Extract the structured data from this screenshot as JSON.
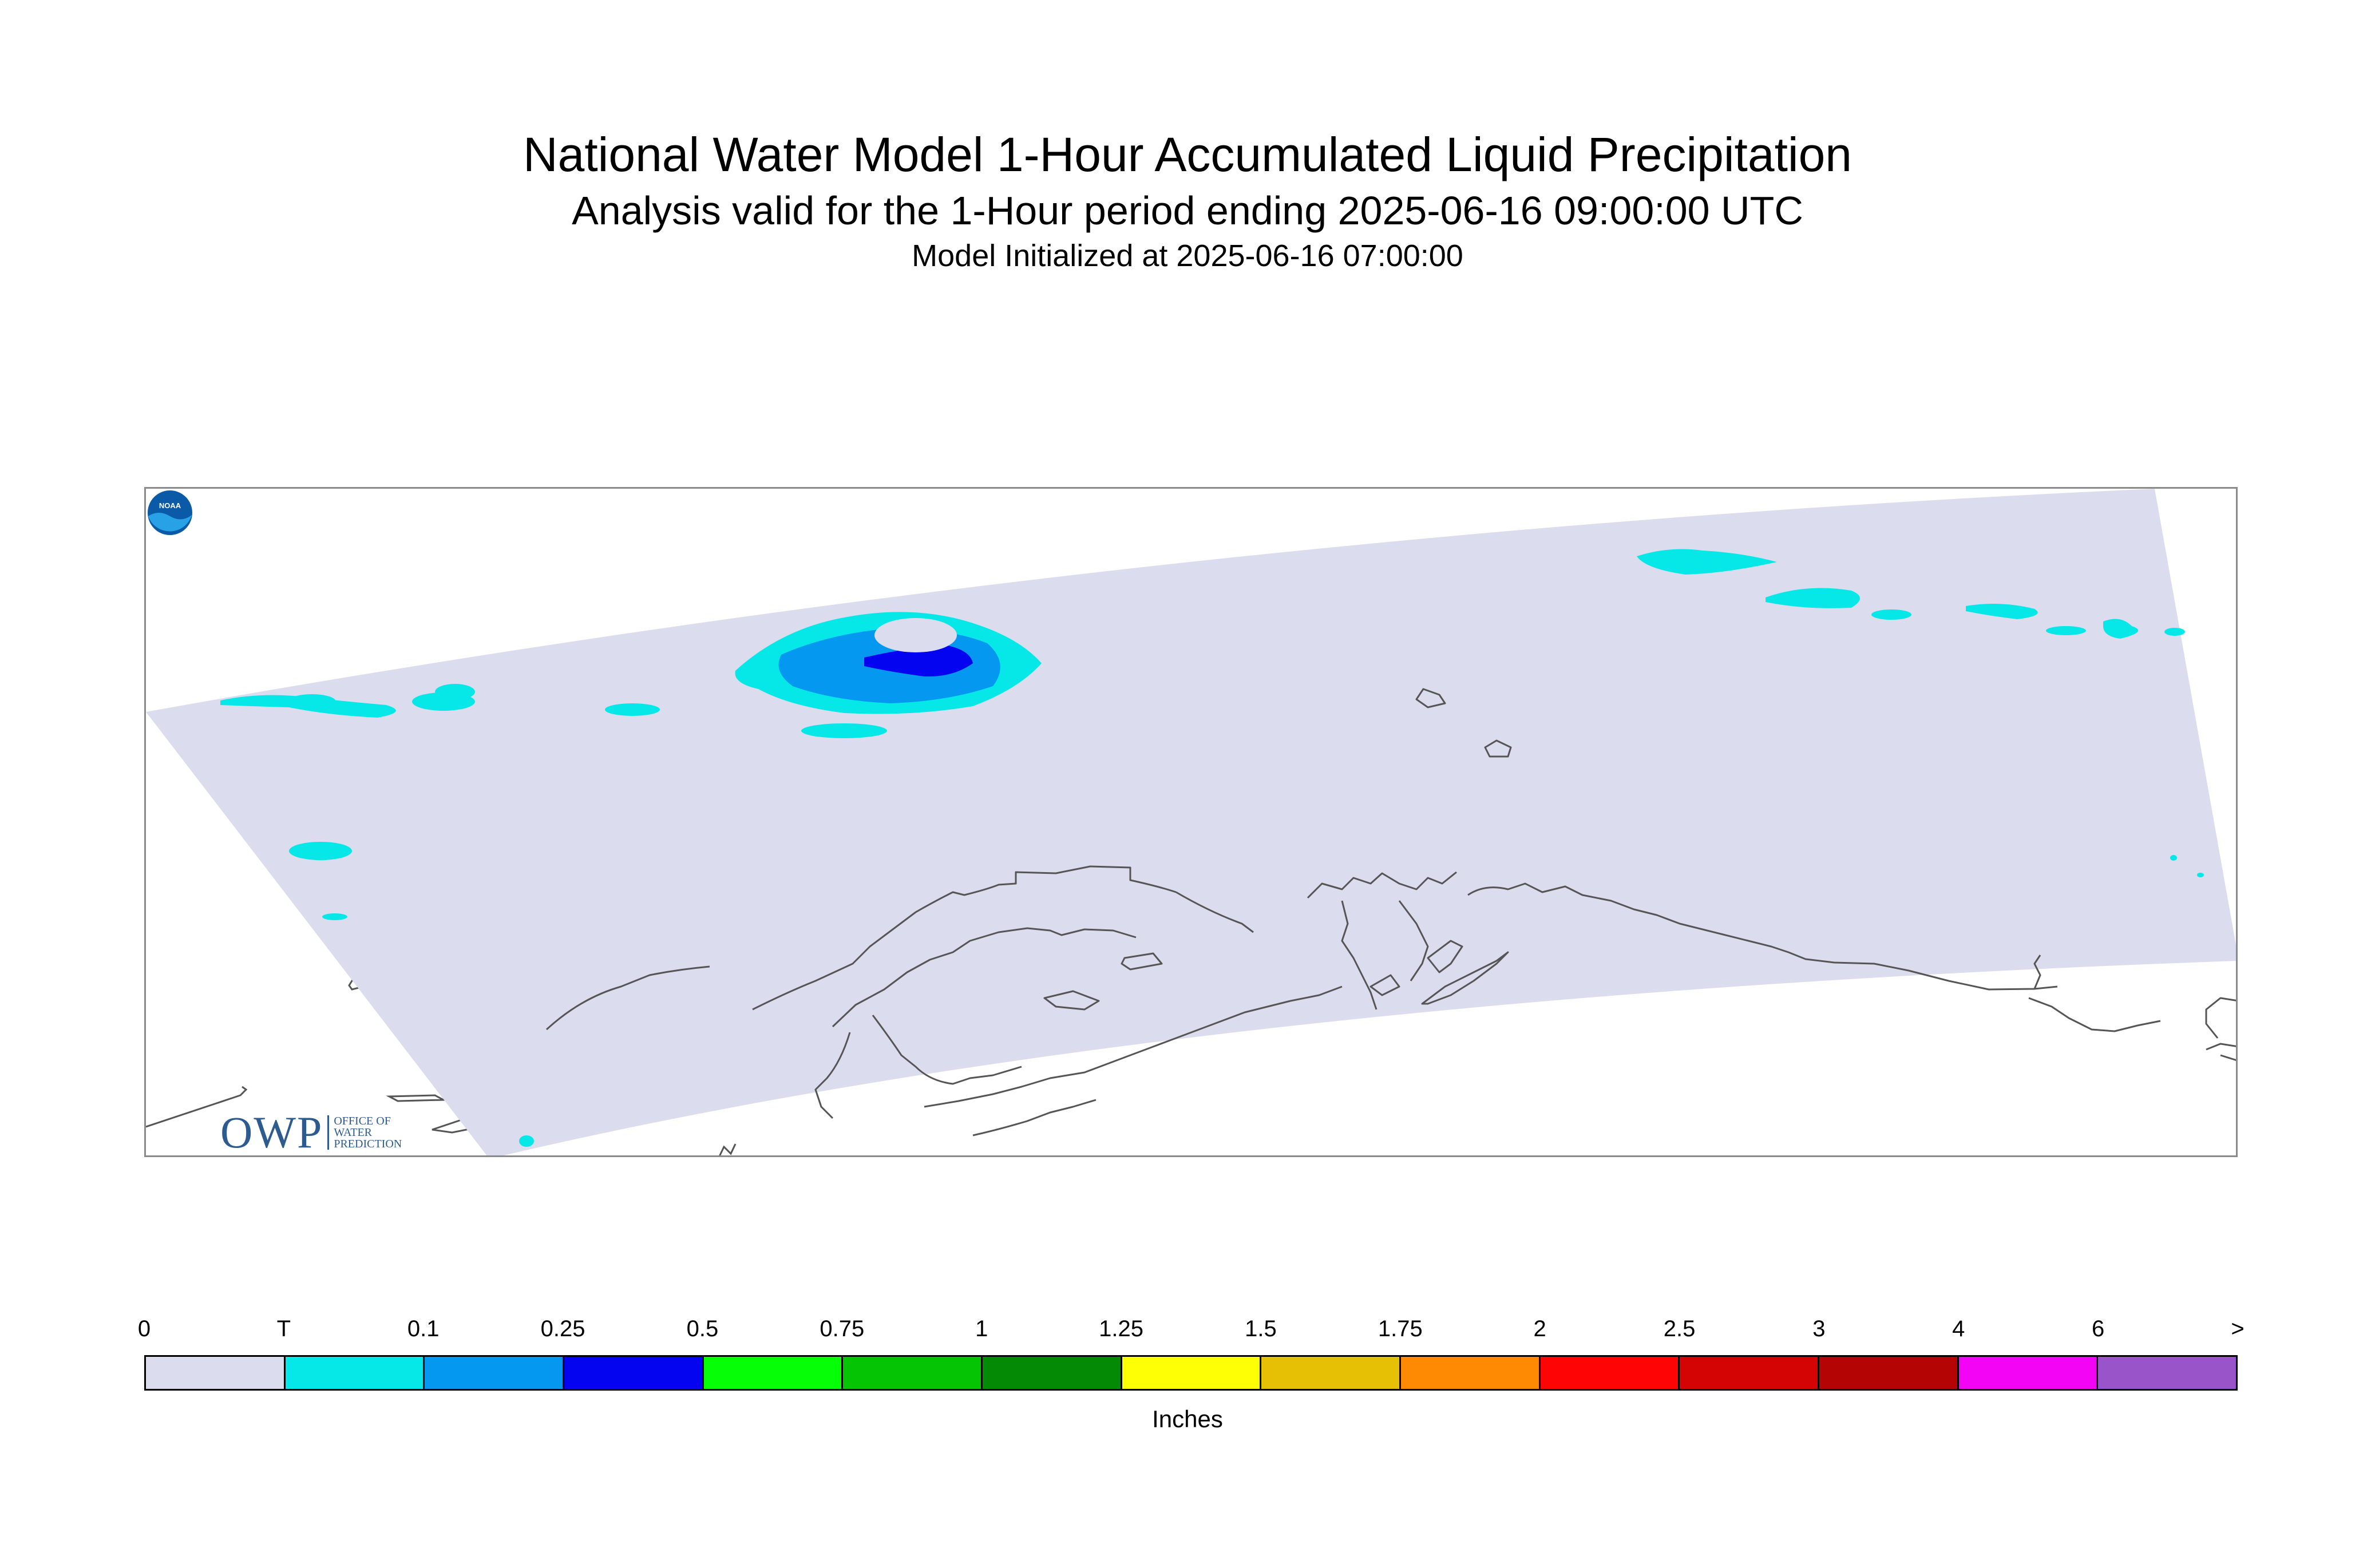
{
  "title": "National Water Model 1-Hour Accumulated Liquid Precipitation",
  "subtitle": "Analysis valid for the 1-Hour period ending 2025-06-16 09:00:00 UTC",
  "init_line": "Model Initialized at 2025-06-16 07:00:00",
  "logos": {
    "owp_letters": "OWP",
    "owp_text": [
      "OFFICE OF",
      "WATER",
      "PREDICTION"
    ],
    "noaa_text": "NOAA"
  },
  "colorbar": {
    "tick_labels": [
      "0",
      "T",
      "0.1",
      "0.25",
      "0.5",
      "0.75",
      "1",
      "1.25",
      "1.5",
      "1.75",
      "2",
      "2.5",
      "3",
      "4",
      "6",
      ">"
    ],
    "colors": [
      "#dcdcef",
      "#06e8e8",
      "#0498f0",
      "#0404f0",
      "#06fe06",
      "#04c404",
      "#048a04",
      "#fefe04",
      "#e6c004",
      "#fe8a04",
      "#fe0404",
      "#d40404",
      "#b40404",
      "#f404f4",
      "#9854c8"
    ],
    "units": "Inches"
  },
  "map_colors": {
    "domain_fill": "#dcdcef",
    "coastline": "#555555",
    "trace": "#06e8e8",
    "light_blue": "#0498f0",
    "dark_blue": "#0404f0"
  }
}
